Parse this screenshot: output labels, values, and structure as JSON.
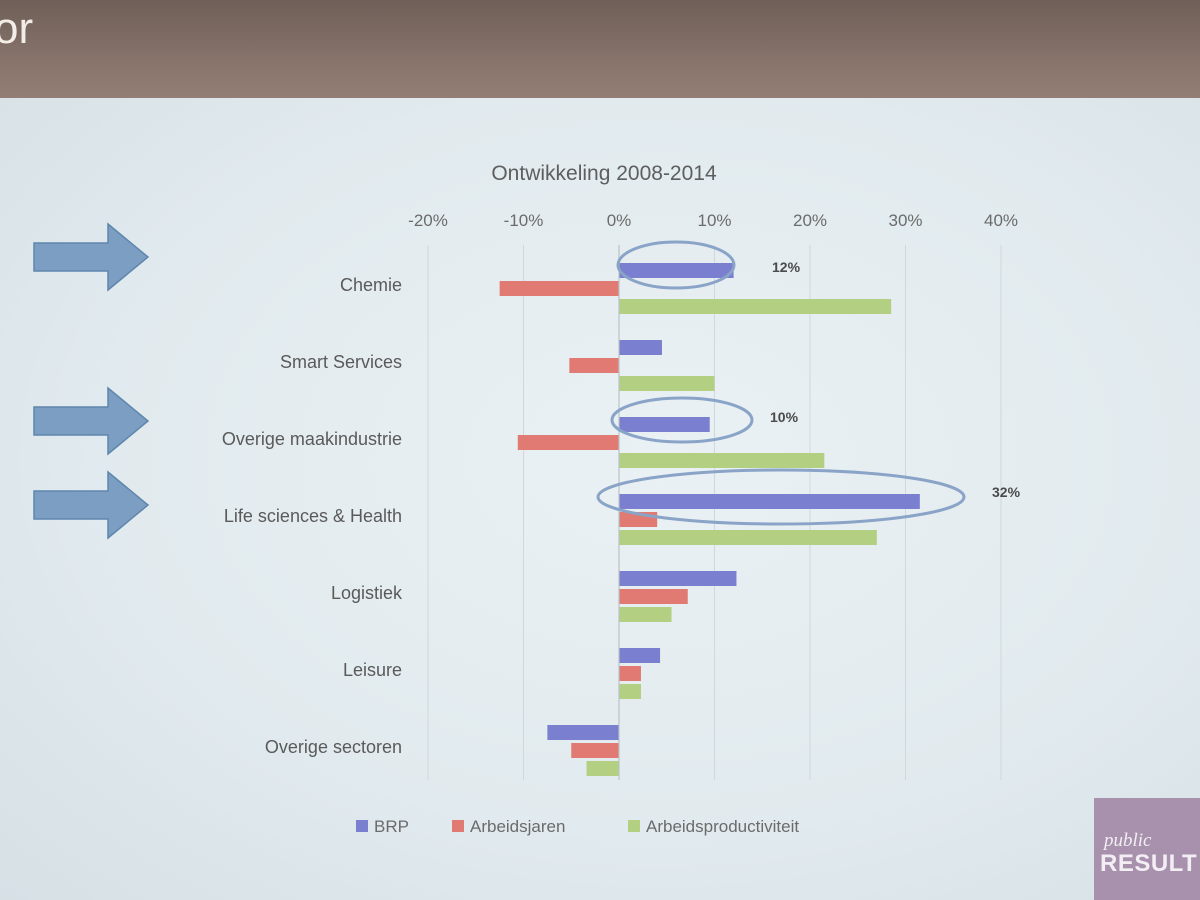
{
  "header": {
    "title_fragment": "or"
  },
  "logo": {
    "line1": "public",
    "line2": "RESULT"
  },
  "colors": {
    "brp": "#7a7fcf",
    "arbeidsjaren": "#e07a72",
    "arbeidsproductiviteit": "#b3cf82",
    "highlight": "#8aa4c8",
    "arrow": "#7b9ec2"
  },
  "chart_data": {
    "type": "bar",
    "orientation": "horizontal",
    "title": "Ontwikkeling 2008-2014",
    "categories": [
      "Chemie",
      "Smart Services",
      "Overige maakindustrie",
      "Life sciences & Health",
      "Logistiek",
      "Leisure",
      "Overige sectoren"
    ],
    "series": [
      {
        "name": "BRP",
        "values": [
          12,
          4.5,
          9.5,
          31.5,
          12.3,
          4.3,
          -7.5
        ]
      },
      {
        "name": "Arbeidsjaren",
        "values": [
          -12.5,
          -5.2,
          -10.6,
          4,
          7.2,
          2.3,
          -5
        ]
      },
      {
        "name": "Arbeidsproductiviteit",
        "values": [
          28.5,
          10,
          21.5,
          27,
          5.5,
          2.3,
          -3.4
        ]
      }
    ],
    "xlim": [
      -20,
      40
    ],
    "xticks": [
      "-20%",
      "-10%",
      "0%",
      "10%",
      "20%",
      "30%",
      "40%"
    ],
    "xtick_values": [
      -20,
      -10,
      0,
      10,
      20,
      30,
      40
    ],
    "grid": true,
    "legend": "bottom",
    "annotations": [
      {
        "category": "Chemie",
        "label": "12%"
      },
      {
        "category": "Overige maakindustrie",
        "label": "10%"
      },
      {
        "category": "Life sciences & Health",
        "label": "32%"
      }
    ],
    "arrows_on": [
      "Chemie",
      "Overige maakindustrie",
      "Life sciences & Health"
    ]
  }
}
